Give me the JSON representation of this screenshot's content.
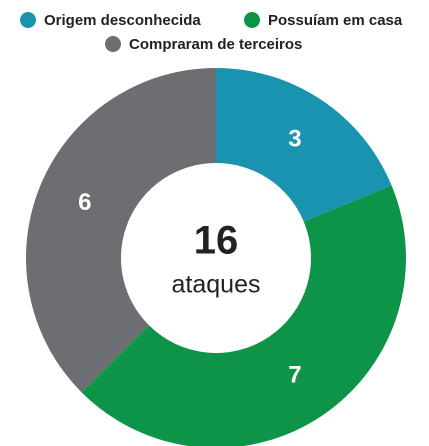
{
  "chart_data": {
    "type": "donut",
    "categories": [
      "Origem desconhecida",
      "Possuíam em casa",
      "Compraram de terceiros"
    ],
    "values": [
      3,
      7,
      6
    ],
    "colors": [
      "#1a93b0",
      "#0e9448",
      "#6d6e71"
    ],
    "center_value": 16,
    "center_label": "ataques",
    "legend": "top"
  }
}
